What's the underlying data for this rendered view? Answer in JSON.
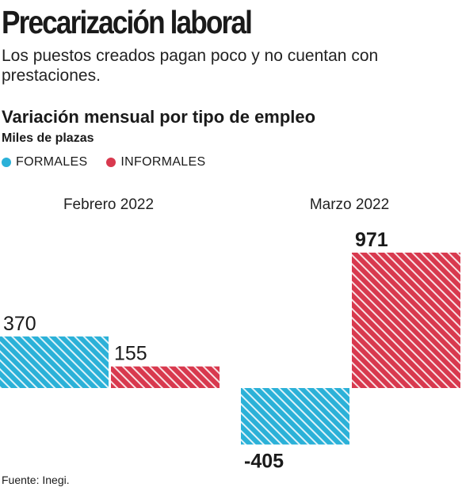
{
  "header": {
    "title": "Precarización laboral",
    "subtitle": "Los puestos creados pagan poco y no cuentan con prestaciones."
  },
  "colors": {
    "formales": "#2bb1d8",
    "informales": "#d8394e"
  },
  "footer": {
    "source": "Fuente: Inegi."
  },
  "chart_data": {
    "type": "bar",
    "title": "Variación mensual por tipo de empleo",
    "units": "Miles de plazas",
    "legend_position": "top-left",
    "grid": false,
    "categories": [
      "Febrero 2022",
      "Marzo 2022"
    ],
    "series": [
      {
        "name": "FORMALES",
        "values": [
          370,
          -405
        ],
        "labels": [
          "370",
          "-405"
        ],
        "color": "#2bb1d8"
      },
      {
        "name": "INFORMALES",
        "values": [
          155,
          971
        ],
        "labels": [
          "155",
          "971"
        ],
        "color": "#d8394e"
      }
    ]
  }
}
